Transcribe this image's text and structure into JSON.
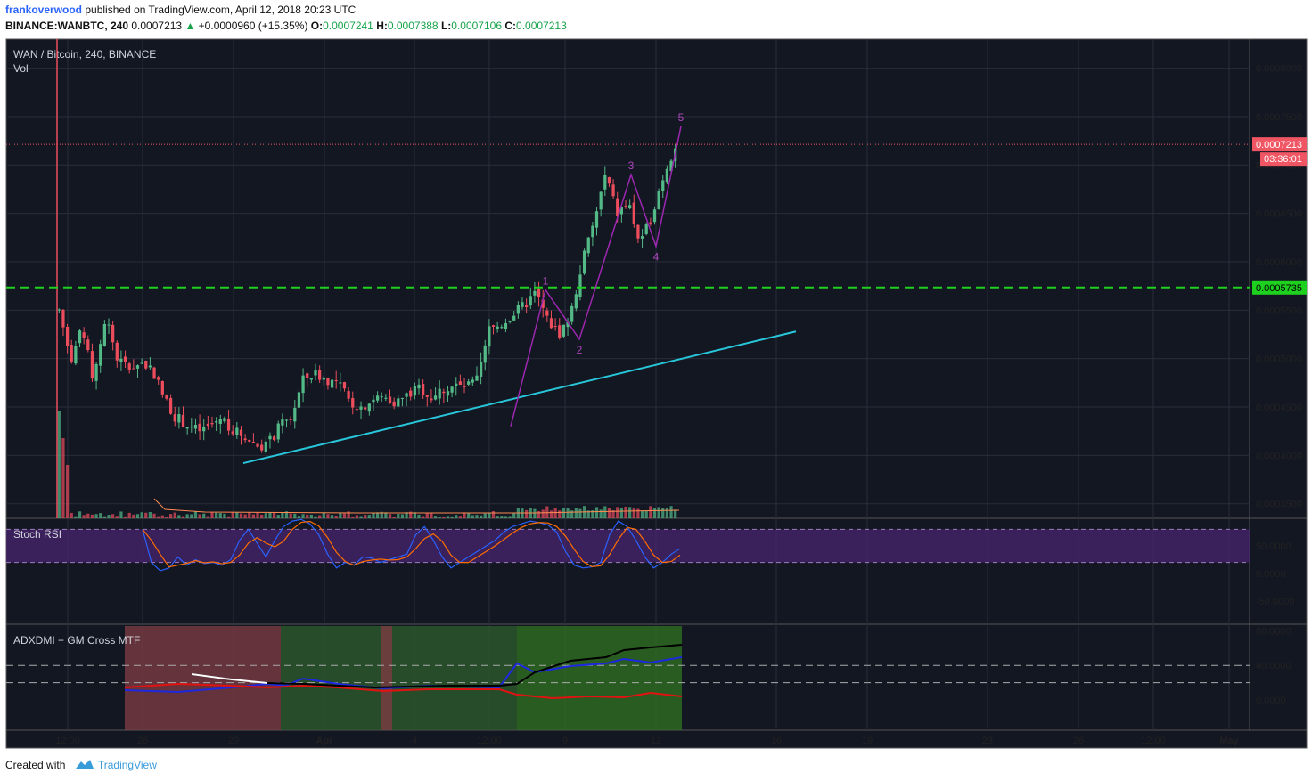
{
  "header": {
    "author": "frankoverwood",
    "published_text": "published on TradingView.com, April 12, 2018 20:23 UTC",
    "symbol": "BINANCE:WANBTC, 240",
    "last": "0.0007213",
    "change": "+0.0000960 (+15.35%)",
    "o_label": "O:",
    "o": "0.0007241",
    "h_label": "H:",
    "h": "0.0007388",
    "l_label": "L:",
    "l": "0.0007106",
    "c_label": "C:",
    "c": "0.0007213"
  },
  "footer": {
    "created_with": "Created with",
    "brand": "TradingView"
  },
  "colors": {
    "background": "#131722",
    "grid": "#2a2e39",
    "axis_text": "#d1d4dc",
    "up": "#53b987",
    "down": "#eb4d5c",
    "support": "#1fd11f",
    "trendline": "#27c6da",
    "wave": "#9c27b0",
    "wave_label": "#ab47bc",
    "stoch_k": "#2962ff",
    "stoch_d": "#ff6d00",
    "stoch_band": "#4b2673",
    "adx": "#000000",
    "di_plus": "#1d28e0",
    "di_minus": "#e01212",
    "bear_zone": "#7a3b42",
    "bull_zone": "#2d5a2d",
    "price_label": "#f05563"
  },
  "chart_data": {
    "type": "candlestick",
    "title": "WAN / Bitcoin, 240, BINANCE",
    "volume_label": "Vol",
    "x_ticks": [
      "12:00",
      "26",
      "29",
      "Apr",
      "4",
      "12:00",
      "9",
      "12",
      "16",
      "19",
      "23",
      "26",
      "12:00",
      "May"
    ],
    "y_ticks": [
      "0.0008000",
      "0.0007500",
      "0.0007000",
      "0.0006500",
      "0.0006000",
      "0.0005500",
      "0.0005000",
      "0.0004500",
      "0.0004000",
      "0.0003500"
    ],
    "ylim": [
      0.000335,
      0.00083
    ],
    "last_price": {
      "value": 0.0007213,
      "label": "0.0007213",
      "countdown": "03:36:01"
    },
    "support": {
      "value": 0.0005735,
      "label": "0.0005735"
    },
    "trendline_points": [
      {
        "x": "Mar 29 12:00",
        "y": 0.000392
      },
      {
        "x": "Apr 16 12:00",
        "y": 0.000528
      }
    ],
    "elliott_waves": [
      {
        "label": "1",
        "value": 0.000571
      },
      {
        "label": "2",
        "value": 0.00052
      },
      {
        "label": "3",
        "value": 0.00069
      },
      {
        "label": "4",
        "value": 0.000616
      },
      {
        "label": "5",
        "value": 0.00074
      }
    ],
    "price_series_close": [
      0.00055,
      0.0005,
      0.00053,
      0.000475,
      0.000545,
      0.0005,
      0.00049,
      0.000495,
      0.00049,
      0.00046,
      0.00044,
      0.000432,
      0.000425,
      0.00043,
      0.00044,
      0.000425,
      0.00042,
      0.00041,
      0.000412,
      0.00043,
      0.00044,
      0.000478,
      0.000485,
      0.000478,
      0.000475,
      0.000455,
      0.00045,
      0.000458,
      0.00046,
      0.000455,
      0.000462,
      0.00047,
      0.00046,
      0.000468,
      0.000472,
      0.00047,
      0.000478,
      0.00053,
      0.000535,
      0.000545,
      0.000555,
      0.000568,
      0.00054,
      0.000525,
      0.000545,
      0.0006,
      0.00064,
      0.00069,
      0.00065,
      0.00066,
      0.000616,
      0.00065,
      0.00069,
      0.000721
    ],
    "stoch_rsi": {
      "label": "Stoch RSI",
      "y_ticks": [
        "50.0000",
        "0.0000",
        "-50.0000"
      ],
      "bands": [
        80,
        20
      ]
    },
    "adx_dmi": {
      "label": "ADXDMI + GM Cross MTF",
      "y_ticks": [
        "80.0000",
        "40.0000",
        "0.0000"
      ],
      "levels": [
        40,
        20
      ]
    }
  }
}
